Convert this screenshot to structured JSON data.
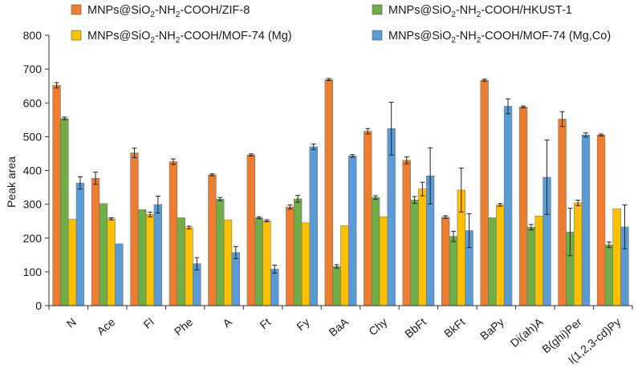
{
  "chart_data": {
    "type": "bar",
    "title": "",
    "xlabel": "",
    "ylabel": "Peak area",
    "ylim": [
      0,
      800
    ],
    "yticks": [
      0,
      100,
      200,
      300,
      400,
      500,
      600,
      700,
      800
    ],
    "grid": false,
    "legend_position": "top",
    "categories": [
      "N",
      "Ace",
      "Fl",
      "Phe",
      "A",
      "Ft",
      "Fy",
      "BaA",
      "Chy",
      "BbFt",
      "BkFt",
      "BaPy",
      "Di(ah)A",
      "B(ghi)Per",
      "I(1,2,3-cd)Py"
    ],
    "series": [
      {
        "name": "MNPs@SiO2-NH2-COOH/ZIF-8",
        "legend": {
          "a": "MNPs@SiO",
          "s1": "2",
          "b": "-NH",
          "s2": "2",
          "c": "-COOH/ZIF-8"
        },
        "color": "#ED7D31",
        "values": [
          652,
          377,
          452,
          426,
          387,
          446,
          292,
          669,
          516,
          430,
          262,
          667,
          588,
          552,
          505
        ],
        "errors": [
          8,
          18,
          14,
          8,
          3,
          3,
          6,
          3,
          8,
          10,
          4,
          3,
          3,
          22,
          3
        ]
      },
      {
        "name": "MNPs@SiO2-NH2-COOH/HKUST-1",
        "legend": {
          "a": "MNPs@SiO",
          "s1": "2",
          "b": "-NH",
          "s2": "2",
          "c": "-COOH/HKUST-1"
        },
        "color": "#70AD47",
        "values": [
          554,
          302,
          284,
          260,
          315,
          260,
          316,
          116,
          320,
          313,
          205,
          260,
          232,
          218,
          180
        ],
        "errors": [
          4,
          0,
          0,
          0,
          5,
          3,
          10,
          5,
          5,
          10,
          15,
          0,
          8,
          70,
          8
        ]
      },
      {
        "name": "MNPs@SiO2-NH2-COOH/MOF-74 (Mg)",
        "legend": {
          "a": "MNPs@SiO",
          "s1": "2",
          "b": "-NH",
          "s2": "2",
          "c": "-COOH/MOF-74 (Mg)"
        },
        "color": "#FFC000",
        "values": [
          256,
          257,
          270,
          231,
          254,
          251,
          245,
          237,
          263,
          345,
          342,
          298,
          265,
          304,
          287
        ],
        "errors": [
          0,
          3,
          7,
          4,
          0,
          3,
          0,
          0,
          0,
          20,
          65,
          4,
          0,
          8,
          0
        ]
      },
      {
        "name": "MNPs@SiO2-NH2-COOH/MOF-74 (Mg,Co)",
        "legend": {
          "a": "MNPs@SiO",
          "s1": "2",
          "b": "-NH",
          "s2": "2",
          "c": "-COOH/MOF-74 (Mg,Co)"
        },
        "color": "#5B9BD5",
        "values": [
          363,
          183,
          299,
          124,
          157,
          108,
          470,
          443,
          524,
          384,
          222,
          590,
          380,
          505,
          233
        ],
        "errors": [
          18,
          0,
          25,
          18,
          18,
          12,
          8,
          4,
          78,
          83,
          50,
          22,
          110,
          6,
          65
        ]
      }
    ]
  }
}
